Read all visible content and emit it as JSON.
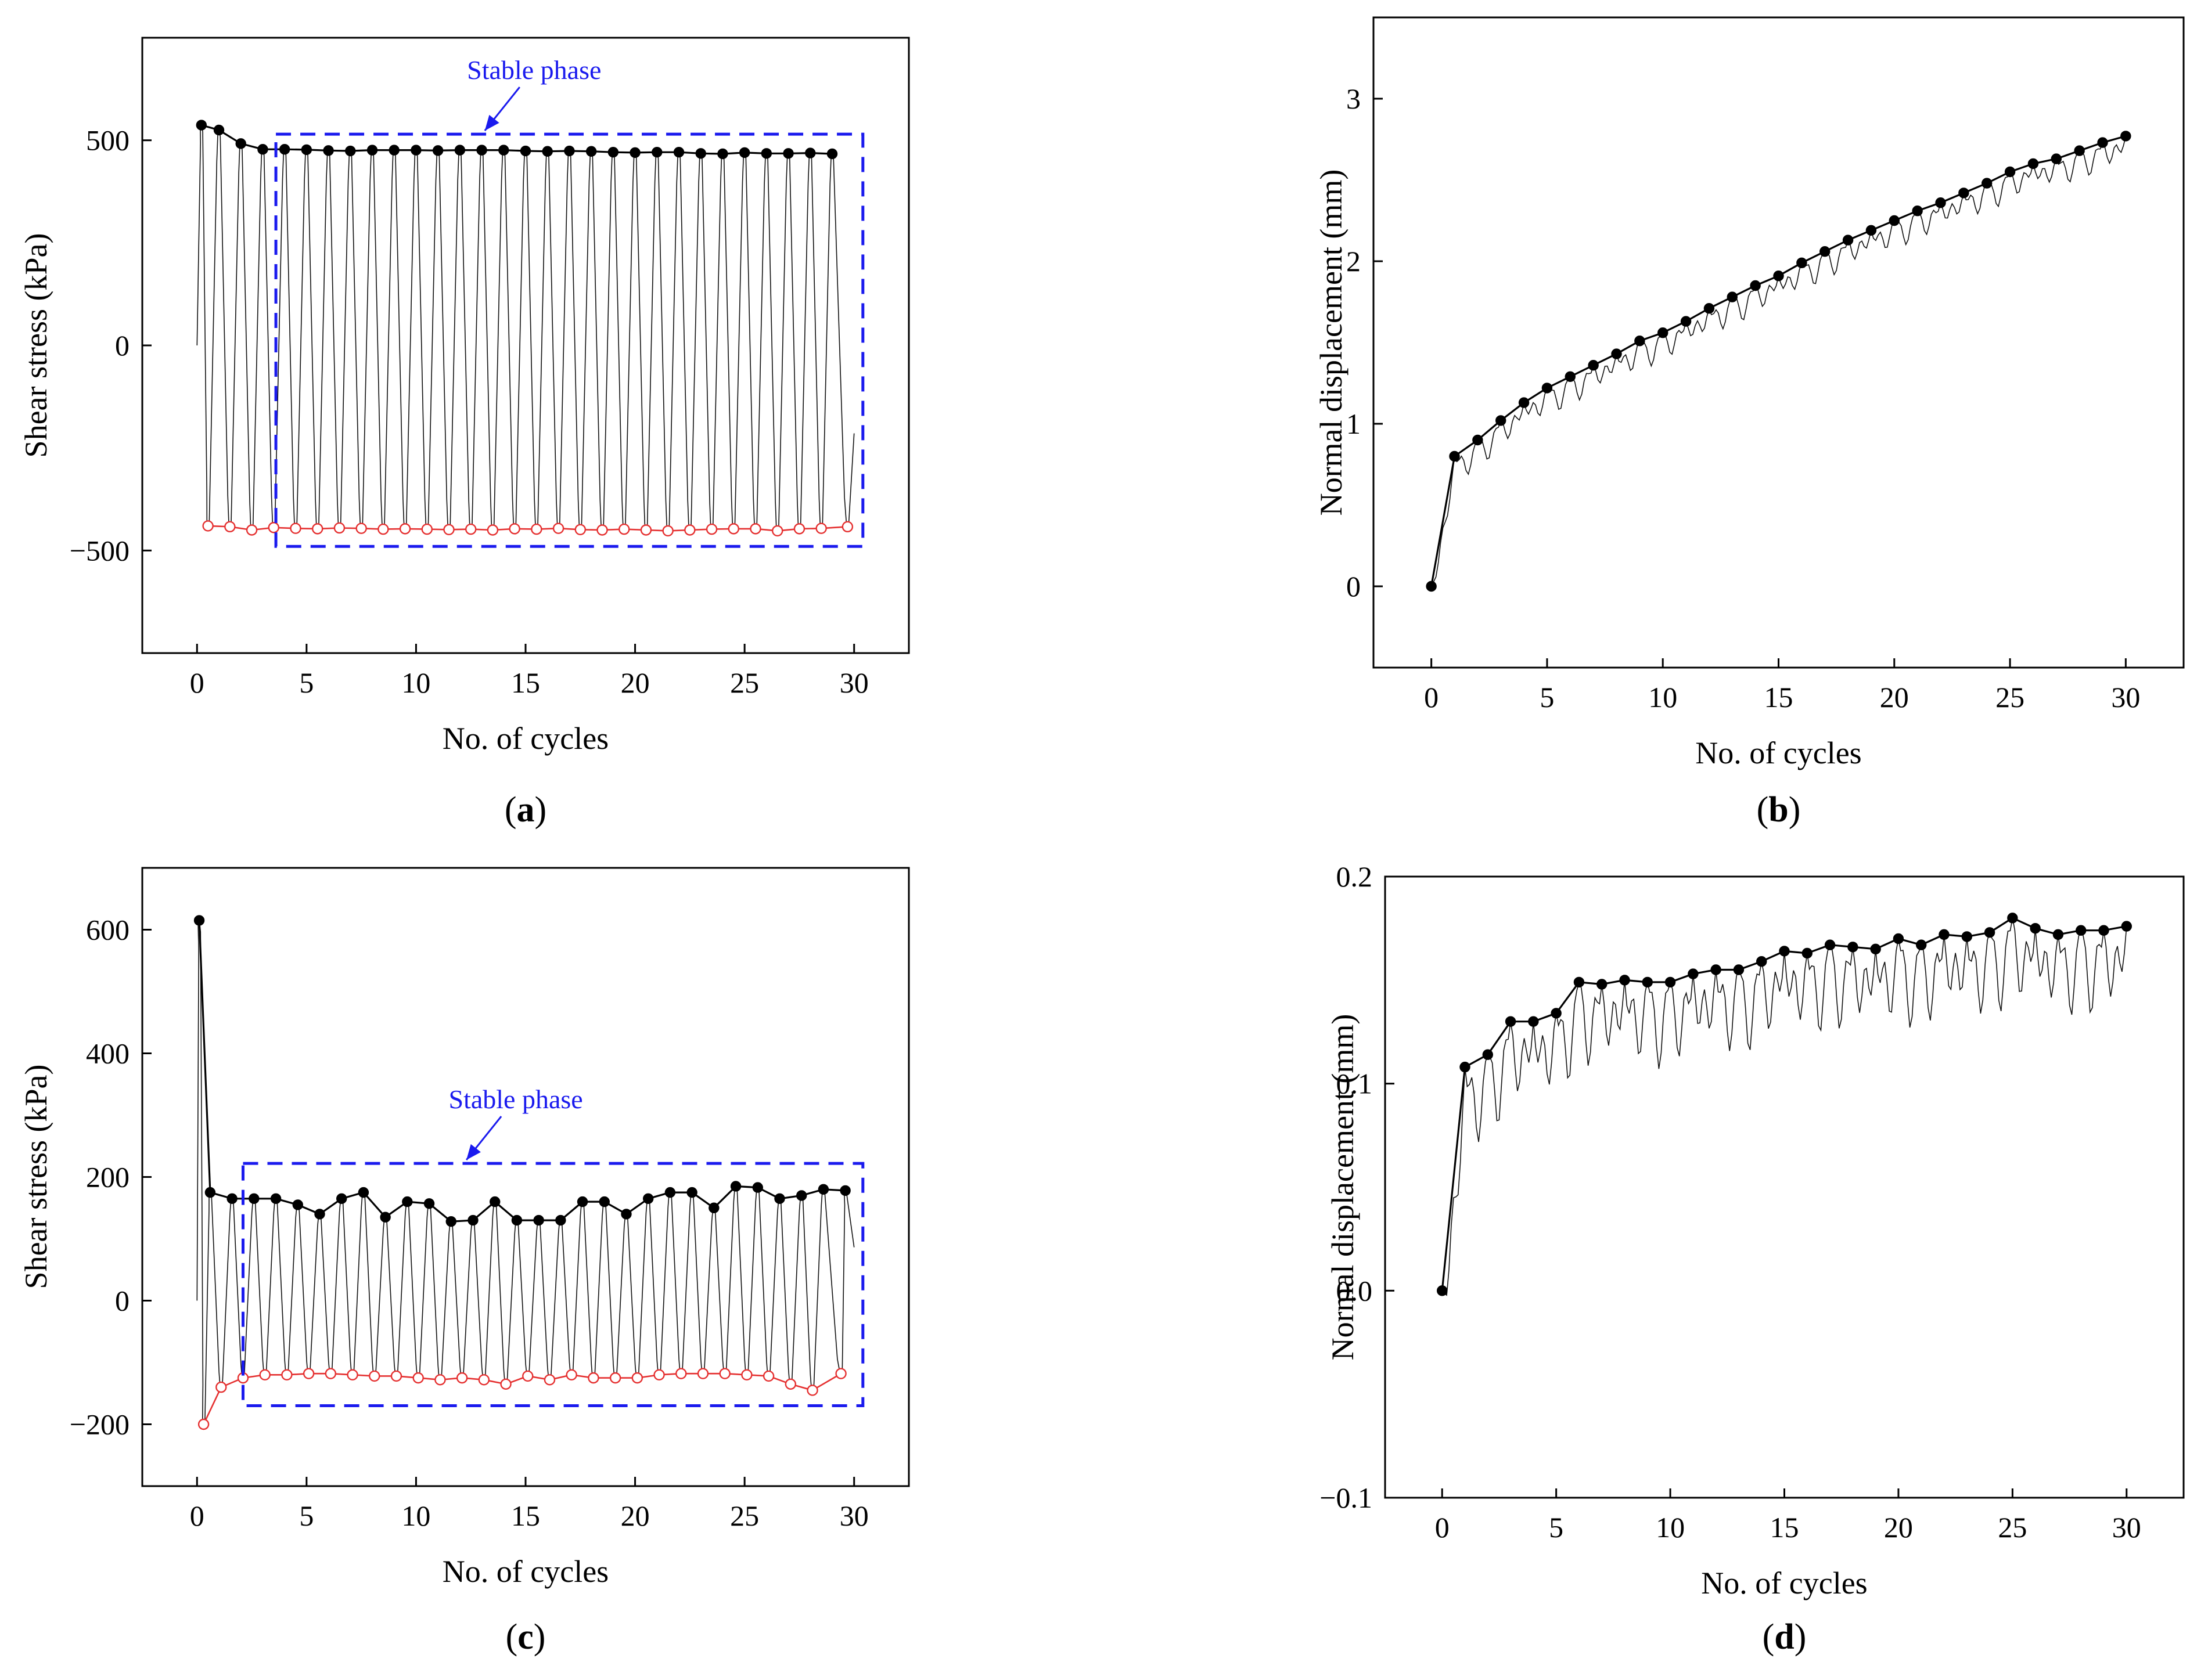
{
  "figure": {
    "panels": [
      {
        "id": "a",
        "label": "a",
        "xlabel": "No. of cycles",
        "ylabel": "Shear stress (kPa)",
        "annotation": "Stable phase",
        "colors": {
          "peak": "#000000",
          "trough": "#e53030",
          "box": "#1a1aee"
        }
      },
      {
        "id": "b",
        "label": "b",
        "xlabel": "No. of cycles",
        "ylabel": "Normal displacement (mm)",
        "colors": {
          "peak": "#000000"
        }
      },
      {
        "id": "c",
        "label": "c",
        "xlabel": "No. of cycles",
        "ylabel": "Shear stress (kPa)",
        "annotation": "Stable phase",
        "colors": {
          "peak": "#000000",
          "trough": "#e53030",
          "box": "#1a1aee"
        }
      },
      {
        "id": "d",
        "label": "d",
        "xlabel": "No. of cycles",
        "ylabel": "Normal displacement (mm)",
        "colors": {
          "peak": "#000000"
        }
      }
    ]
  },
  "chart_data": [
    {
      "panel": "a",
      "type": "line",
      "xlabel": "No. of cycles",
      "ylabel": "Shear stress (kPa)",
      "xlim": [
        -2.5,
        32.5
      ],
      "ylim": [
        -750,
        750
      ],
      "xticks": [
        0,
        5,
        10,
        15,
        20,
        25,
        30
      ],
      "yticks": [
        -500,
        0,
        500
      ],
      "ytick_labels": [
        "−500",
        "0",
        "500"
      ],
      "grid": false,
      "series": [
        {
          "role": "peak",
          "color": "#000000",
          "marker": "filled-circle",
          "x": [
            0.2,
            1,
            2,
            3,
            4,
            5,
            6,
            7,
            8,
            9,
            10,
            11,
            12,
            13,
            14,
            15,
            16,
            17,
            18,
            19,
            20,
            21,
            22,
            23,
            24,
            25,
            26,
            27,
            28,
            29
          ],
          "y": [
            537,
            525,
            492,
            478,
            478,
            477,
            475,
            474,
            476,
            476,
            476,
            475,
            476,
            476,
            476,
            474,
            473,
            474,
            473,
            471,
            470,
            471,
            471,
            468,
            467,
            470,
            468,
            468,
            469,
            467
          ]
        },
        {
          "role": "trough",
          "color": "#e53030",
          "marker": "open-circle",
          "x": [
            0.5,
            1.5,
            2.5,
            3.5,
            4.5,
            5.5,
            6.5,
            7.5,
            8.5,
            9.5,
            10.5,
            11.5,
            12.5,
            13.5,
            14.5,
            15.5,
            16.5,
            17.5,
            18.5,
            19.5,
            20.5,
            21.5,
            22.5,
            23.5,
            24.5,
            25.5,
            26.5,
            27.5,
            28.5,
            29.7
          ],
          "y": [
            -440,
            -442,
            -450,
            -444,
            -446,
            -447,
            -445,
            -446,
            -448,
            -447,
            -448,
            -449,
            -448,
            -450,
            -447,
            -448,
            -446,
            -449,
            -450,
            -448,
            -450,
            -452,
            -450,
            -448,
            -447,
            -447,
            -452,
            -447,
            -446,
            -442
          ]
        },
        {
          "role": "cyclic",
          "color": "#111111",
          "description": "raw cyclic shear stress oscillating between the peak and trough envelopes"
        }
      ],
      "annotation": {
        "text": "Stable phase",
        "x_range": [
          3.6,
          30.4
        ],
        "y_range": [
          -490,
          515
        ]
      }
    },
    {
      "panel": "b",
      "type": "line",
      "xlabel": "No. of cycles",
      "ylabel": "Normal displacement (mm)",
      "xlim": [
        -2.5,
        32.5
      ],
      "ylim": [
        -0.5,
        3.5
      ],
      "xticks": [
        0,
        5,
        10,
        15,
        20,
        25,
        30
      ],
      "yticks": [
        0,
        1,
        2,
        3
      ],
      "grid": false,
      "series": [
        {
          "role": "peak",
          "color": "#000000",
          "marker": "filled-circle",
          "x": [
            0,
            1,
            2,
            3,
            4,
            5,
            6,
            7,
            8,
            9,
            10,
            11,
            12,
            13,
            14,
            15,
            16,
            17,
            18,
            19,
            20,
            21,
            22,
            23,
            24,
            25,
            26,
            27,
            28,
            29,
            30
          ],
          "y": [
            0,
            0.8,
            0.9,
            1.02,
            1.13,
            1.22,
            1.29,
            1.36,
            1.43,
            1.51,
            1.56,
            1.63,
            1.71,
            1.78,
            1.85,
            1.91,
            1.99,
            2.06,
            2.13,
            2.19,
            2.25,
            2.31,
            2.36,
            2.42,
            2.48,
            2.55,
            2.6,
            2.63,
            2.68,
            2.73,
            2.77
          ]
        },
        {
          "role": "cyclic",
          "color": "#111111",
          "description": "raw normal displacement dipping within each cycle below the envelope"
        }
      ]
    },
    {
      "panel": "c",
      "type": "line",
      "xlabel": "No. of cycles",
      "ylabel": "Shear stress (kPa)",
      "xlim": [
        -2.5,
        32.5
      ],
      "ylim": [
        -300,
        700
      ],
      "xticks": [
        0,
        5,
        10,
        15,
        20,
        25,
        30
      ],
      "yticks": [
        -200,
        0,
        200,
        400,
        600
      ],
      "ytick_labels": [
        "−200",
        "0",
        "200",
        "400",
        "600"
      ],
      "grid": false,
      "series": [
        {
          "role": "peak",
          "color": "#000000",
          "marker": "filled-circle",
          "x": [
            0.1,
            0.6,
            1.6,
            2.6,
            3.6,
            4.6,
            5.6,
            6.6,
            7.6,
            8.6,
            9.6,
            10.6,
            11.6,
            12.6,
            13.6,
            14.6,
            15.6,
            16.6,
            17.6,
            18.6,
            19.6,
            20.6,
            21.6,
            22.6,
            23.6,
            24.6,
            25.6,
            26.6,
            27.6,
            28.6,
            29.6
          ],
          "y": [
            615,
            175,
            165,
            165,
            165,
            155,
            140,
            165,
            175,
            135,
            160,
            157,
            128,
            130,
            160,
            130,
            130,
            130,
            160,
            160,
            140,
            165,
            175,
            175,
            150,
            185,
            183,
            165,
            170,
            180,
            178
          ]
        },
        {
          "role": "trough",
          "color": "#e53030",
          "marker": "open-circle",
          "x": [
            0.3,
            1.1,
            2.1,
            3.1,
            4.1,
            5.1,
            6.1,
            7.1,
            8.1,
            9.1,
            10.1,
            11.1,
            12.1,
            13.1,
            14.1,
            15.1,
            16.1,
            17.1,
            18.1,
            19.1,
            20.1,
            21.1,
            22.1,
            23.1,
            24.1,
            25.1,
            26.1,
            27.1,
            28.1,
            29.4
          ],
          "y": [
            -200,
            -140,
            -125,
            -120,
            -120,
            -118,
            -118,
            -120,
            -122,
            -122,
            -125,
            -128,
            -125,
            -128,
            -135,
            -122,
            -128,
            -120,
            -125,
            -125,
            -125,
            -120,
            -118,
            -118,
            -118,
            -120,
            -122,
            -135,
            -145,
            -118
          ]
        },
        {
          "role": "cyclic",
          "color": "#111111",
          "description": "raw cyclic shear stress oscillating between the peak and trough envelopes"
        }
      ],
      "annotation": {
        "text": "Stable phase",
        "x_range": [
          2.1,
          30.4
        ],
        "y_range": [
          -170,
          222
        ]
      }
    },
    {
      "panel": "d",
      "type": "line",
      "xlabel": "No. of cycles",
      "ylabel": "Normal displacement (mm)",
      "xlim": [
        -2.5,
        32.5
      ],
      "ylim": [
        -0.1,
        0.2
      ],
      "xticks": [
        0,
        5,
        10,
        15,
        20,
        25,
        30
      ],
      "yticks": [
        -0.1,
        0.0,
        0.1,
        0.2
      ],
      "ytick_labels": [
        "−0.1",
        "0.0",
        "0.1",
        "0.2"
      ],
      "grid": false,
      "series": [
        {
          "role": "peak",
          "color": "#000000",
          "marker": "filled-circle",
          "x": [
            0,
            1,
            2,
            3,
            4,
            5,
            6,
            7,
            8,
            9,
            10,
            11,
            12,
            13,
            14,
            15,
            16,
            17,
            18,
            19,
            20,
            21,
            22,
            23,
            24,
            25,
            26,
            27,
            28,
            29,
            30
          ],
          "y": [
            0,
            0.108,
            0.114,
            0.13,
            0.13,
            0.134,
            0.149,
            0.148,
            0.15,
            0.149,
            0.149,
            0.153,
            0.155,
            0.155,
            0.159,
            0.164,
            0.163,
            0.167,
            0.166,
            0.165,
            0.17,
            0.167,
            0.172,
            0.171,
            0.173,
            0.18,
            0.175,
            0.172,
            0.174,
            0.174,
            0.176
          ]
        },
        {
          "role": "cyclic",
          "color": "#111111",
          "description": "raw normal displacement fluctuating below the envelope"
        }
      ]
    }
  ]
}
